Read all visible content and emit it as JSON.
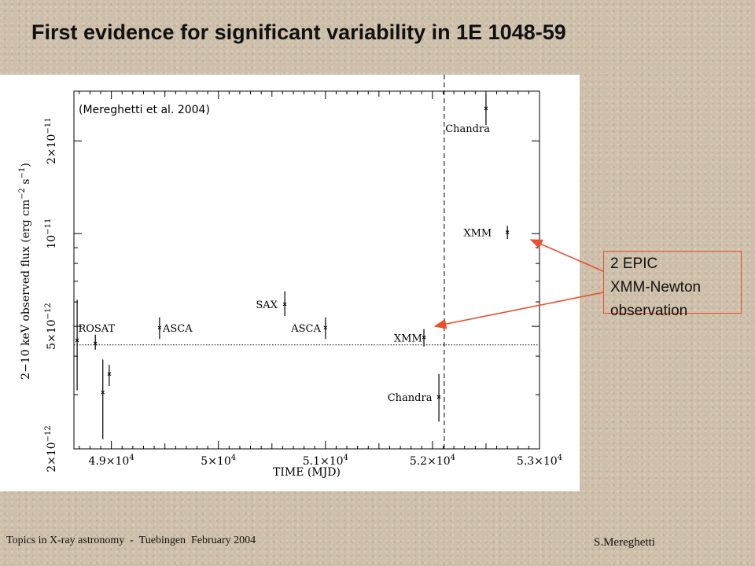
{
  "slide": {
    "title": "First evidence for significant variability in 1E 1048-59",
    "callout_lines": [
      "2 EPIC",
      "XMM-Newton",
      "observation"
    ],
    "callout_color": "#e8502e",
    "footer_left": "Topics in X-ray astronomy  -  Tuebingen  February 2004",
    "footer_right": "S.Mereghetti"
  },
  "chart_data": {
    "type": "scatter",
    "annotation": "(Mereghetti et al. 2004)",
    "xlabel": "TIME (MJD)",
    "ylabel": "2−10 keV observed flux (erg cm",
    "ylabel_sup1": "−2",
    "ylabel_mid": " s",
    "ylabel_sup2": "−1",
    "ylabel_end": ")",
    "xlim": [
      48650,
      53000
    ],
    "ylim": [
      2e-12,
      2.9e-11
    ],
    "yscale": "log",
    "x_ticks": [
      {
        "value": 49000,
        "mant": "4.9×10",
        "exp": "4"
      },
      {
        "value": 50000,
        "mant": "5×10",
        "exp": "4"
      },
      {
        "value": 51000,
        "mant": "5.1×10",
        "exp": "4"
      },
      {
        "value": 52000,
        "mant": "5.2×10",
        "exp": "4"
      },
      {
        "value": 53000,
        "mant": "5.3×10",
        "exp": "4"
      }
    ],
    "y_ticks": [
      {
        "value": 2e-12,
        "mant": "2×10",
        "exp": "−12"
      },
      {
        "value": 5e-12,
        "mant": "5×10",
        "exp": "−12"
      },
      {
        "value": 1e-11,
        "mant": "10",
        "exp": "−11"
      },
      {
        "value": 2e-11,
        "mant": "2×10",
        "exp": "−11"
      }
    ],
    "reference_line_y": 4.35e-12,
    "vertical_line_x": 52110,
    "points": [
      {
        "x": 48680,
        "y": 4.5e-12,
        "ylo": 3.1e-12,
        "yhi": 6.1e-12
      },
      {
        "x": 48850,
        "y": 4.4e-12,
        "ylo": 4.2e-12,
        "yhi": 4.7e-12
      },
      {
        "x": 48920,
        "y": 3.05e-12,
        "ylo": 2.15e-12,
        "yhi": 3.9e-12
      },
      {
        "x": 48980,
        "y": 3.5e-12,
        "ylo": 3.2e-12,
        "yhi": 3.75e-12
      },
      {
        "x": 49450,
        "y": 4.95e-12,
        "ylo": 4.55e-12,
        "yhi": 5.35e-12
      },
      {
        "x": 50620,
        "y": 5.9e-12,
        "ylo": 5.4e-12,
        "yhi": 6.5e-12
      },
      {
        "x": 51000,
        "y": 4.95e-12,
        "ylo": 4.55e-12,
        "yhi": 5.35e-12
      },
      {
        "x": 51920,
        "y": 4.6e-12,
        "ylo": 4.3e-12,
        "yhi": 4.9e-12
      },
      {
        "x": 52060,
        "y": 2.95e-12,
        "ylo": 2.45e-12,
        "yhi": 3.5e-12
      },
      {
        "x": 52500,
        "y": 2.55e-11,
        "ylo": 2.25e-11,
        "yhi": 2.85e-11
      },
      {
        "x": 52700,
        "y": 1.01e-11,
        "ylo": 9.6e-12,
        "yhi": 1.06e-11
      }
    ],
    "labels": [
      {
        "text": "ROSAT",
        "x": 48690,
        "y": 4.95e-12
      },
      {
        "text": "ASCA",
        "x": 49480,
        "y": 4.95e-12
      },
      {
        "text": "SAX",
        "x": 50350,
        "y": 5.9e-12
      },
      {
        "text": "ASCA",
        "x": 50680,
        "y": 4.95e-12
      },
      {
        "text": "XMM",
        "x": 51640,
        "y": 4.6e-12
      },
      {
        "text": "Chandra",
        "x": 51580,
        "y": 2.95e-12
      },
      {
        "text": "Chandra",
        "x": 52120,
        "y": 2.2e-11
      },
      {
        "text": "XMM",
        "x": 52290,
        "y": 1.01e-11
      }
    ]
  }
}
